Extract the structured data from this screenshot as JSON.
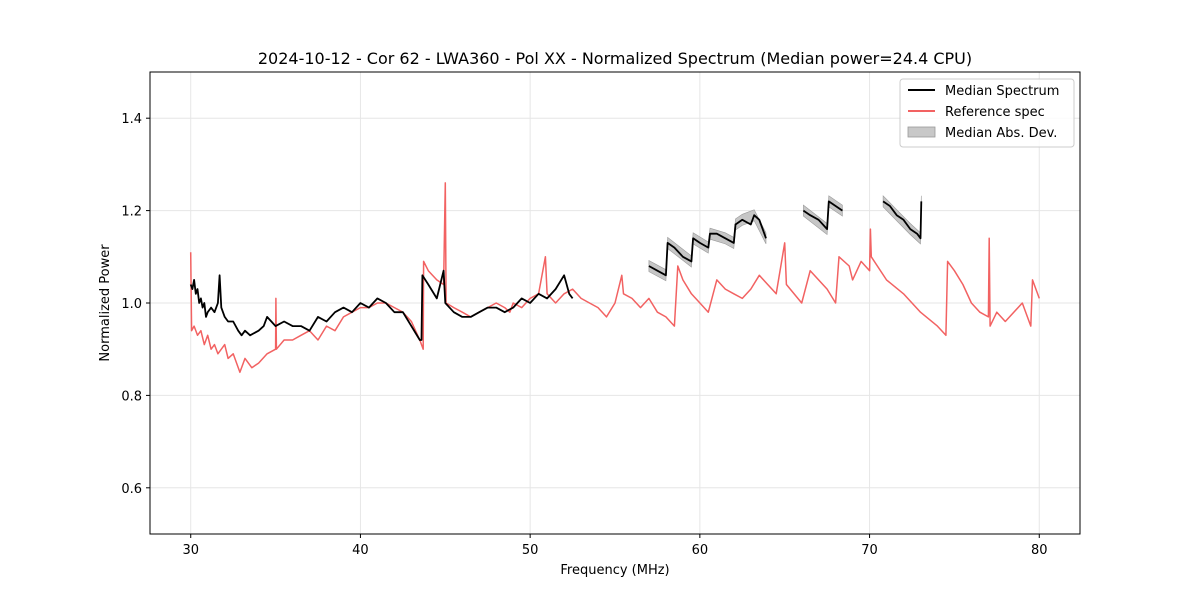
{
  "chart_data": {
    "type": "line",
    "title": "2024-10-12 - Cor 62 - LWA360 - Pol XX - Normalized Spectrum (Median power=24.4 CPU)",
    "xlabel": "Frequency (MHz)",
    "ylabel": "Normalized Power",
    "xlim": [
      27.6,
      82.4
    ],
    "ylim": [
      0.5,
      1.5
    ],
    "xticks": [
      30,
      40,
      50,
      60,
      70,
      80
    ],
    "yticks": [
      0.6,
      0.8,
      1.0,
      1.2,
      1.4
    ],
    "xtick_labels": [
      "30",
      "40",
      "50",
      "60",
      "70",
      "80"
    ],
    "ytick_labels": [
      "0.6",
      "0.8",
      "1.0",
      "1.2",
      "1.4"
    ],
    "grid": true,
    "legend_position": "top-right",
    "legend": [
      "Median Spectrum",
      "Reference spec",
      "Median Abs. Dev."
    ],
    "colors": {
      "median": "#000000",
      "reference": "#f26262",
      "mad": "#b3b3b3"
    },
    "series": [
      {
        "name": "Reference spec",
        "segments": [
          [
            [
              30.0,
              1.11
            ],
            [
              30.05,
              0.94
            ],
            [
              30.2,
              0.95
            ],
            [
              30.4,
              0.93
            ],
            [
              30.6,
              0.94
            ],
            [
              30.8,
              0.91
            ],
            [
              31.0,
              0.93
            ],
            [
              31.2,
              0.9
            ],
            [
              31.4,
              0.91
            ],
            [
              31.6,
              0.89
            ],
            [
              31.8,
              0.9
            ],
            [
              32.0,
              0.91
            ],
            [
              32.2,
              0.88
            ],
            [
              32.5,
              0.89
            ],
            [
              32.9,
              0.85
            ],
            [
              33.2,
              0.88
            ],
            [
              33.6,
              0.86
            ],
            [
              34.0,
              0.87
            ],
            [
              34.5,
              0.89
            ],
            [
              35.0,
              0.9
            ],
            [
              35.02,
              1.01
            ],
            [
              35.05,
              0.9
            ],
            [
              35.5,
              0.92
            ],
            [
              36.0,
              0.92
            ],
            [
              36.5,
              0.93
            ],
            [
              37.0,
              0.94
            ],
            [
              37.5,
              0.92
            ],
            [
              38.0,
              0.95
            ],
            [
              38.5,
              0.94
            ],
            [
              39.0,
              0.97
            ],
            [
              39.5,
              0.98
            ],
            [
              40.0,
              0.99
            ],
            [
              40.5,
              0.99
            ],
            [
              41.0,
              1.0
            ],
            [
              41.5,
              1.0
            ],
            [
              42.0,
              0.99
            ],
            [
              42.5,
              0.98
            ],
            [
              43.0,
              0.96
            ],
            [
              43.5,
              0.92
            ],
            [
              43.7,
              0.9
            ],
            [
              43.72,
              1.09
            ],
            [
              44.0,
              1.07
            ],
            [
              44.5,
              1.05
            ],
            [
              44.9,
              1.04
            ],
            [
              45.0,
              1.26
            ],
            [
              45.05,
              1.0
            ],
            [
              45.5,
              0.99
            ],
            [
              46.0,
              0.98
            ],
            [
              46.5,
              0.97
            ],
            [
              47.0,
              0.98
            ],
            [
              47.5,
              0.99
            ],
            [
              48.0,
              1.0
            ],
            [
              48.5,
              0.99
            ],
            [
              48.8,
              0.98
            ],
            [
              49.0,
              1.0
            ],
            [
              49.5,
              0.99
            ],
            [
              50.0,
              1.01
            ],
            [
              50.5,
              1.02
            ],
            [
              50.9,
              1.1
            ],
            [
              51.0,
              1.02
            ],
            [
              51.5,
              1.0
            ],
            [
              52.0,
              1.02
            ],
            [
              52.5,
              1.03
            ],
            [
              53.0,
              1.01
            ],
            [
              53.5,
              1.0
            ],
            [
              54.0,
              0.99
            ],
            [
              54.5,
              0.97
            ],
            [
              55.0,
              1.0
            ],
            [
              55.4,
              1.06
            ],
            [
              55.5,
              1.02
            ],
            [
              56.0,
              1.01
            ],
            [
              56.5,
              0.99
            ],
            [
              57.0,
              1.01
            ],
            [
              57.5,
              0.98
            ],
            [
              58.0,
              0.97
            ],
            [
              58.5,
              0.95
            ],
            [
              58.7,
              1.08
            ],
            [
              59.0,
              1.05
            ],
            [
              59.5,
              1.02
            ],
            [
              60.0,
              1.0
            ],
            [
              60.5,
              0.98
            ],
            [
              61.0,
              1.05
            ],
            [
              61.5,
              1.03
            ],
            [
              62.0,
              1.02
            ],
            [
              62.5,
              1.01
            ],
            [
              63.0,
              1.03
            ],
            [
              63.5,
              1.06
            ],
            [
              64.0,
              1.04
            ],
            [
              64.5,
              1.02
            ],
            [
              65.0,
              1.13
            ],
            [
              65.1,
              1.04
            ],
            [
              66.0,
              1.0
            ],
            [
              66.5,
              1.07
            ],
            [
              67.0,
              1.05
            ],
            [
              67.5,
              1.03
            ],
            [
              68.0,
              1.0
            ],
            [
              68.2,
              1.1
            ],
            [
              68.8,
              1.08
            ],
            [
              69.0,
              1.05
            ],
            [
              69.5,
              1.09
            ],
            [
              70.0,
              1.07
            ],
            [
              70.05,
              1.16
            ],
            [
              70.1,
              1.1
            ],
            [
              71.0,
              1.05
            ],
            [
              72.0,
              1.02
            ],
            [
              73.0,
              0.98
            ],
            [
              74.0,
              0.95
            ],
            [
              74.5,
              0.93
            ],
            [
              74.6,
              1.09
            ],
            [
              75.0,
              1.07
            ],
            [
              75.5,
              1.04
            ],
            [
              76.0,
              1.0
            ],
            [
              76.5,
              0.98
            ],
            [
              77.0,
              0.97
            ],
            [
              77.05,
              1.14
            ],
            [
              77.1,
              0.95
            ],
            [
              77.5,
              0.98
            ],
            [
              78.0,
              0.96
            ],
            [
              79.0,
              1.0
            ],
            [
              79.5,
              0.95
            ],
            [
              79.6,
              1.05
            ],
            [
              80.0,
              1.01
            ]
          ]
        ]
      },
      {
        "name": "Median Spectrum",
        "segments": [
          [
            [
              30.0,
              1.04
            ],
            [
              30.1,
              1.03
            ],
            [
              30.2,
              1.05
            ],
            [
              30.3,
              1.02
            ],
            [
              30.4,
              1.03
            ],
            [
              30.5,
              1.0
            ],
            [
              30.6,
              1.01
            ],
            [
              30.7,
              0.99
            ],
            [
              30.8,
              1.0
            ],
            [
              30.9,
              0.97
            ],
            [
              31.0,
              0.98
            ],
            [
              31.2,
              0.99
            ],
            [
              31.4,
              0.98
            ],
            [
              31.6,
              1.0
            ],
            [
              31.7,
              1.06
            ],
            [
              31.8,
              0.99
            ],
            [
              32.0,
              0.97
            ],
            [
              32.2,
              0.96
            ],
            [
              32.5,
              0.96
            ],
            [
              32.8,
              0.94
            ],
            [
              33.0,
              0.93
            ],
            [
              33.2,
              0.94
            ],
            [
              33.5,
              0.93
            ],
            [
              34.0,
              0.94
            ],
            [
              34.3,
              0.95
            ],
            [
              34.5,
              0.97
            ],
            [
              35.0,
              0.95
            ],
            [
              35.5,
              0.96
            ],
            [
              36.0,
              0.95
            ],
            [
              36.5,
              0.95
            ],
            [
              37.0,
              0.94
            ],
            [
              37.5,
              0.97
            ],
            [
              38.0,
              0.96
            ],
            [
              38.5,
              0.98
            ],
            [
              39.0,
              0.99
            ],
            [
              39.5,
              0.98
            ],
            [
              40.0,
              1.0
            ],
            [
              40.5,
              0.99
            ],
            [
              41.0,
              1.01
            ],
            [
              41.5,
              1.0
            ],
            [
              42.0,
              0.98
            ],
            [
              42.5,
              0.98
            ],
            [
              43.0,
              0.95
            ],
            [
              43.5,
              0.92
            ],
            [
              43.6,
              0.92
            ],
            [
              43.65,
              1.06
            ],
            [
              44.0,
              1.04
            ],
            [
              44.5,
              1.01
            ],
            [
              44.9,
              1.07
            ],
            [
              45.0,
              1.0
            ],
            [
              45.5,
              0.98
            ],
            [
              46.0,
              0.97
            ],
            [
              46.5,
              0.97
            ],
            [
              47.0,
              0.98
            ],
            [
              47.5,
              0.99
            ],
            [
              48.0,
              0.99
            ],
            [
              48.5,
              0.98
            ],
            [
              49.0,
              0.99
            ],
            [
              49.5,
              1.01
            ],
            [
              50.0,
              1.0
            ],
            [
              50.5,
              1.02
            ],
            [
              51.0,
              1.01
            ],
            [
              51.5,
              1.03
            ],
            [
              52.0,
              1.06
            ],
            [
              52.3,
              1.02
            ],
            [
              52.5,
              1.01
            ]
          ],
          [
            [
              57.0,
              1.08
            ],
            [
              57.5,
              1.07
            ],
            [
              58.0,
              1.06
            ],
            [
              58.1,
              1.13
            ],
            [
              58.5,
              1.12
            ],
            [
              59.0,
              1.1
            ],
            [
              59.5,
              1.09
            ],
            [
              59.6,
              1.14
            ],
            [
              60.0,
              1.13
            ],
            [
              60.5,
              1.12
            ],
            [
              60.6,
              1.15
            ],
            [
              61.0,
              1.15
            ],
            [
              61.5,
              1.14
            ],
            [
              62.0,
              1.13
            ],
            [
              62.1,
              1.17
            ],
            [
              62.5,
              1.18
            ],
            [
              63.0,
              1.17
            ],
            [
              63.2,
              1.19
            ],
            [
              63.5,
              1.18
            ],
            [
              63.9,
              1.14
            ]
          ],
          [
            [
              66.1,
              1.2
            ],
            [
              66.5,
              1.19
            ],
            [
              67.0,
              1.18
            ],
            [
              67.5,
              1.16
            ],
            [
              67.6,
              1.22
            ],
            [
              68.0,
              1.21
            ],
            [
              68.4,
              1.2
            ]
          ],
          [
            [
              70.8,
              1.22
            ],
            [
              71.2,
              1.21
            ],
            [
              71.6,
              1.19
            ],
            [
              72.0,
              1.18
            ],
            [
              72.4,
              1.16
            ],
            [
              72.8,
              1.15
            ],
            [
              73.0,
              1.14
            ],
            [
              73.05,
              1.22
            ]
          ]
        ]
      },
      {
        "name": "Median Abs. Dev.",
        "mad": 0.012,
        "segments": [
          [
            [
              57.0,
              1.08
            ],
            [
              58.0,
              1.06
            ],
            [
              58.1,
              1.13
            ],
            [
              59.5,
              1.09
            ],
            [
              59.6,
              1.14
            ],
            [
              60.5,
              1.12
            ],
            [
              60.6,
              1.15
            ],
            [
              61.5,
              1.14
            ],
            [
              62.0,
              1.13
            ],
            [
              62.1,
              1.17
            ],
            [
              62.5,
              1.18
            ],
            [
              63.2,
              1.19
            ],
            [
              63.9,
              1.14
            ]
          ],
          [
            [
              66.1,
              1.2
            ],
            [
              67.5,
              1.16
            ],
            [
              67.6,
              1.22
            ],
            [
              68.4,
              1.2
            ]
          ],
          [
            [
              70.8,
              1.22
            ],
            [
              71.6,
              1.19
            ],
            [
              72.4,
              1.16
            ],
            [
              73.0,
              1.14
            ],
            [
              73.05,
              1.22
            ]
          ]
        ]
      }
    ]
  }
}
